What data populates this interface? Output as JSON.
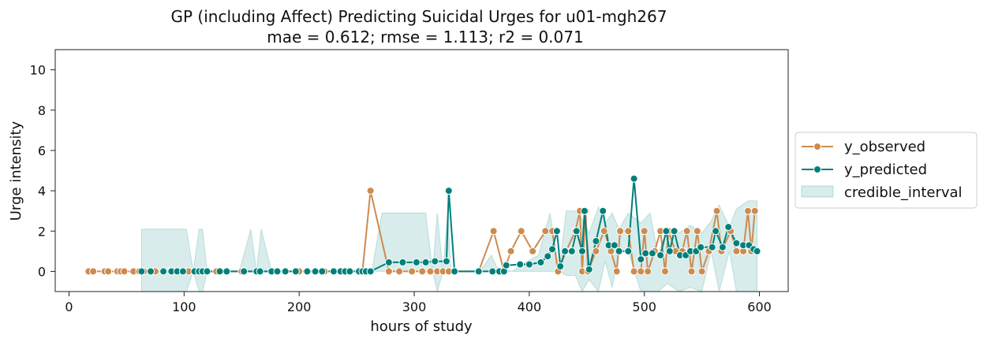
{
  "chart_data": {
    "type": "line",
    "title": "GP (including Affect) Predicting Suicidal Urges for u01-mgh267",
    "subtitle": "mae = 0.612; rmse = 1.113; r2 = 0.071",
    "xlabel": "hours of study",
    "ylabel": "Urge intensity",
    "xlim": [
      -12,
      625
    ],
    "ylim": [
      -1,
      11
    ],
    "xticks": [
      0,
      100,
      200,
      300,
      400,
      500,
      600
    ],
    "yticks": [
      0,
      2,
      4,
      6,
      8,
      10
    ],
    "grid": false,
    "legend_position": "right, outside plot",
    "series": [
      {
        "name": "y_observed",
        "color": "#CD8B4E",
        "points": [
          [
            17,
            0
          ],
          [
            21,
            0
          ],
          [
            31,
            0
          ],
          [
            34,
            0
          ],
          [
            42,
            0
          ],
          [
            45,
            0
          ],
          [
            48,
            0
          ],
          [
            56,
            0
          ],
          [
            61,
            0
          ],
          [
            65,
            0
          ],
          [
            75,
            0
          ],
          [
            88,
            0
          ],
          [
            94,
            0
          ],
          [
            104,
            0
          ],
          [
            117,
            0
          ],
          [
            128,
            0
          ],
          [
            150,
            0
          ],
          [
            163,
            0
          ],
          [
            181,
            0
          ],
          [
            200,
            0
          ],
          [
            222,
            0
          ],
          [
            240,
            0
          ],
          [
            255,
            0
          ],
          [
            262,
            4
          ],
          [
            278,
            0
          ],
          [
            287,
            0
          ],
          [
            298,
            0
          ],
          [
            307,
            0
          ],
          [
            314,
            0
          ],
          [
            320,
            0
          ],
          [
            325,
            0
          ],
          [
            330,
            0
          ],
          [
            356,
            0
          ],
          [
            369,
            2
          ],
          [
            378,
            0
          ],
          [
            384,
            1
          ],
          [
            393,
            2
          ],
          [
            403,
            1
          ],
          [
            414,
            2
          ],
          [
            420,
            2
          ],
          [
            425,
            0
          ],
          [
            432,
            1
          ],
          [
            440,
            2
          ],
          [
            444,
            3
          ],
          [
            446,
            0
          ],
          [
            449,
            3
          ],
          [
            451,
            0
          ],
          [
            458,
            1
          ],
          [
            465,
            2
          ],
          [
            471,
            1
          ],
          [
            476,
            0
          ],
          [
            479,
            2
          ],
          [
            486,
            2
          ],
          [
            491,
            0
          ],
          [
            497,
            0
          ],
          [
            500,
            2
          ],
          [
            503,
            0
          ],
          [
            509,
            1
          ],
          [
            514,
            2
          ],
          [
            518,
            0
          ],
          [
            521,
            2
          ],
          [
            527,
            1
          ],
          [
            533,
            1
          ],
          [
            537,
            2
          ],
          [
            541,
            0
          ],
          [
            546,
            2
          ],
          [
            550,
            0
          ],
          [
            556,
            1
          ],
          [
            563,
            3
          ],
          [
            567,
            1
          ],
          [
            575,
            2
          ],
          [
            580,
            1
          ],
          [
            586,
            1
          ],
          [
            590,
            3
          ],
          [
            593,
            1
          ],
          [
            596,
            3
          ]
        ]
      },
      {
        "name": "y_predicted",
        "color": "#00807A",
        "points": [
          [
            63,
            0
          ],
          [
            71,
            0
          ],
          [
            82,
            0
          ],
          [
            89,
            0
          ],
          [
            94,
            0
          ],
          [
            99,
            0
          ],
          [
            109,
            0
          ],
          [
            113,
            0
          ],
          [
            116,
            0
          ],
          [
            120,
            0
          ],
          [
            131,
            0
          ],
          [
            137,
            0
          ],
          [
            152,
            0
          ],
          [
            163,
            0
          ],
          [
            166,
            0
          ],
          [
            176,
            0
          ],
          [
            181,
            0
          ],
          [
            188,
            0
          ],
          [
            197,
            0
          ],
          [
            207,
            0
          ],
          [
            214,
            0
          ],
          [
            220,
            0
          ],
          [
            230,
            0
          ],
          [
            236,
            0
          ],
          [
            240,
            0
          ],
          [
            244,
            0
          ],
          [
            252,
            0
          ],
          [
            255,
            0
          ],
          [
            258,
            0
          ],
          [
            262,
            0
          ],
          [
            278,
            0.45
          ],
          [
            290,
            0.45
          ],
          [
            302,
            0.45
          ],
          [
            310,
            0.45
          ],
          [
            318,
            0.5
          ],
          [
            328,
            0.5
          ],
          [
            330,
            4
          ],
          [
            335,
            0
          ],
          [
            356,
            0
          ],
          [
            368,
            0
          ],
          [
            374,
            0
          ],
          [
            378,
            0
          ],
          [
            380,
            0.3
          ],
          [
            392,
            0.35
          ],
          [
            400,
            0.35
          ],
          [
            410,
            0.45
          ],
          [
            416,
            0.75
          ],
          [
            420,
            1.1
          ],
          [
            424,
            2
          ],
          [
            427,
            0.25
          ],
          [
            431,
            1
          ],
          [
            437,
            1
          ],
          [
            441,
            2
          ],
          [
            446,
            1
          ],
          [
            448,
            3
          ],
          [
            452,
            0.1
          ],
          [
            458,
            1.5
          ],
          [
            464,
            3
          ],
          [
            469,
            1.3
          ],
          [
            474,
            1.3
          ],
          [
            478,
            1
          ],
          [
            486,
            1
          ],
          [
            491,
            4.6
          ],
          [
            497,
            0.6
          ],
          [
            501,
            0.9
          ],
          [
            507,
            0.9
          ],
          [
            514,
            0.8
          ],
          [
            519,
            2
          ],
          [
            522,
            1
          ],
          [
            526,
            2
          ],
          [
            531,
            0.8
          ],
          [
            536,
            0.8
          ],
          [
            540,
            1
          ],
          [
            545,
            1
          ],
          [
            549,
            1.2
          ],
          [
            559,
            1.2
          ],
          [
            562,
            2
          ],
          [
            568,
            1.2
          ],
          [
            573,
            2.2
          ],
          [
            580,
            1.4
          ],
          [
            586,
            1.3
          ],
          [
            591,
            1.3
          ],
          [
            595,
            1.1
          ],
          [
            598,
            1
          ]
        ]
      }
    ],
    "band": {
      "name": "credible_interval",
      "color": "#5FB5AE",
      "opacity": 0.25,
      "upper": [
        [
          63,
          2.1
        ],
        [
          70,
          2.1
        ],
        [
          90,
          2.1
        ],
        [
          102,
          2.1
        ],
        [
          108,
          0
        ],
        [
          113,
          2.1
        ],
        [
          116,
          2.1
        ],
        [
          120,
          0
        ],
        [
          148,
          0
        ],
        [
          158,
          2.1
        ],
        [
          163,
          0
        ],
        [
          167,
          2.1
        ],
        [
          176,
          0
        ],
        [
          263,
          0
        ],
        [
          272,
          2.9
        ],
        [
          280,
          2.9
        ],
        [
          300,
          2.9
        ],
        [
          310,
          2.9
        ],
        [
          316,
          0
        ],
        [
          320,
          2.9
        ],
        [
          325,
          0
        ],
        [
          329,
          2.9
        ],
        [
          332,
          0
        ],
        [
          357,
          0
        ],
        [
          367,
          0.8
        ],
        [
          372,
          0.2
        ],
        [
          385,
          0
        ],
        [
          398,
          0.5
        ],
        [
          408,
          0.8
        ],
        [
          418,
          2.9
        ],
        [
          426,
          0
        ],
        [
          432,
          3
        ],
        [
          440,
          3
        ],
        [
          446,
          2.6
        ],
        [
          452,
          1.9
        ],
        [
          460,
          3.2
        ],
        [
          466,
          2.4
        ],
        [
          472,
          2.9
        ],
        [
          478,
          2.1
        ],
        [
          486,
          2.9
        ],
        [
          497,
          2.4
        ],
        [
          505,
          2.9
        ],
        [
          512,
          0.8
        ],
        [
          520,
          2.2
        ],
        [
          530,
          1.9
        ],
        [
          540,
          2.3
        ],
        [
          550,
          1.9
        ],
        [
          558,
          2.5
        ],
        [
          565,
          3.3
        ],
        [
          574,
          2.2
        ],
        [
          580,
          3.1
        ],
        [
          590,
          3.5
        ],
        [
          598,
          3.5
        ]
      ],
      "lower": [
        [
          598,
          -1
        ],
        [
          590,
          -1
        ],
        [
          580,
          -1
        ],
        [
          574,
          1
        ],
        [
          565,
          -1
        ],
        [
          558,
          1
        ],
        [
          550,
          -1
        ],
        [
          540,
          -0.8
        ],
        [
          530,
          -1
        ],
        [
          520,
          -0.6
        ],
        [
          512,
          -1
        ],
        [
          505,
          -1
        ],
        [
          497,
          -1
        ],
        [
          486,
          1
        ],
        [
          478,
          1
        ],
        [
          472,
          -0.8
        ],
        [
          466,
          0.5
        ],
        [
          460,
          -1
        ],
        [
          452,
          -0.4
        ],
        [
          446,
          -1
        ],
        [
          440,
          -0.2
        ],
        [
          432,
          -0.2
        ],
        [
          426,
          0
        ],
        [
          418,
          0
        ],
        [
          408,
          0
        ],
        [
          398,
          0
        ],
        [
          385,
          0
        ],
        [
          372,
          0
        ],
        [
          367,
          0
        ],
        [
          357,
          0
        ],
        [
          332,
          0
        ],
        [
          329,
          0
        ],
        [
          325,
          0
        ],
        [
          320,
          -1
        ],
        [
          316,
          0
        ],
        [
          310,
          0
        ],
        [
          300,
          0
        ],
        [
          280,
          0
        ],
        [
          272,
          0
        ],
        [
          263,
          0
        ],
        [
          176,
          0
        ],
        [
          167,
          0
        ],
        [
          163,
          0
        ],
        [
          158,
          0
        ],
        [
          148,
          0
        ],
        [
          120,
          0
        ],
        [
          116,
          -1
        ],
        [
          113,
          -1
        ],
        [
          108,
          0
        ],
        [
          102,
          -1
        ],
        [
          90,
          -1
        ],
        [
          70,
          -1
        ],
        [
          63,
          -1
        ]
      ]
    }
  }
}
